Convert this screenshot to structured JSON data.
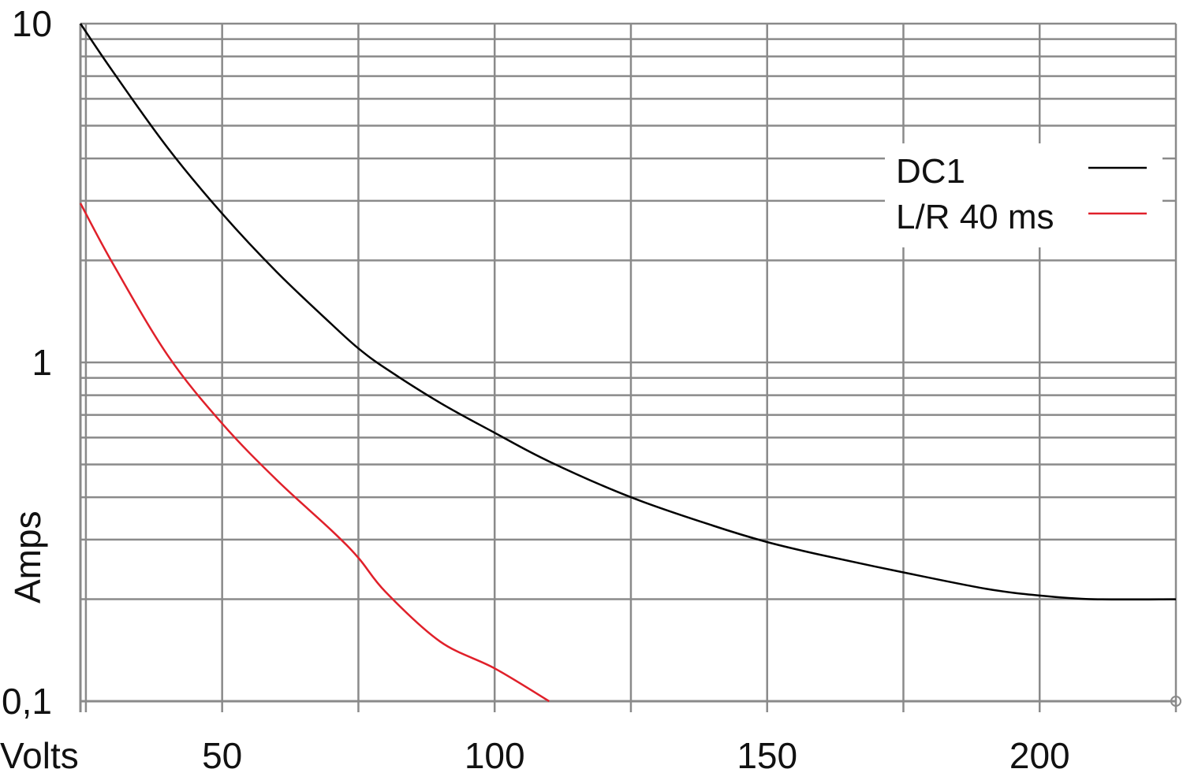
{
  "chart_data": {
    "type": "line",
    "xlabel": "Volts",
    "ylabel": "Amps",
    "xlim": [
      24,
      225
    ],
    "ylim": [
      0.1,
      10
    ],
    "y_scale": "log",
    "grid": true,
    "x_ticks": [
      {
        "value": 50,
        "label": "50"
      },
      {
        "value": 100,
        "label": "100"
      },
      {
        "value": 150,
        "label": "150"
      },
      {
        "value": 200,
        "label": "200"
      }
    ],
    "x_gridlines": [
      25,
      50,
      75,
      100,
      125,
      150,
      175,
      200,
      225
    ],
    "y_ticks": [
      {
        "value": 10,
        "label": "10"
      },
      {
        "value": 1,
        "label": "1"
      },
      {
        "value": 0.1,
        "label": "0,1"
      }
    ],
    "y_gridlines": [
      10,
      9,
      8,
      7,
      6,
      5,
      4,
      3,
      2,
      1,
      0.9,
      0.8,
      0.7,
      0.6,
      0.5,
      0.4,
      0.3,
      0.2
    ],
    "legend_position": "top-right",
    "series": [
      {
        "name": "DC1",
        "color": "#000000",
        "x": [
          24,
          30,
          40,
          50,
          60,
          70,
          75,
          80,
          90,
          100,
          110,
          125,
          140,
          150,
          160,
          175,
          190,
          200,
          210,
          225
        ],
        "y": [
          10,
          7.2,
          4.3,
          2.75,
          1.85,
          1.3,
          1.1,
          0.96,
          0.76,
          0.62,
          0.51,
          0.4,
          0.33,
          0.295,
          0.27,
          0.24,
          0.215,
          0.205,
          0.2,
          0.2
        ]
      },
      {
        "name": "L/R 40 ms",
        "color": "#e0202a",
        "x": [
          24,
          30,
          40,
          50,
          60,
          70,
          75,
          80,
          90,
          100,
          110
        ],
        "y": [
          2.95,
          1.95,
          1.05,
          0.66,
          0.45,
          0.32,
          0.265,
          0.21,
          0.15,
          0.125,
          0.1
        ]
      }
    ]
  }
}
